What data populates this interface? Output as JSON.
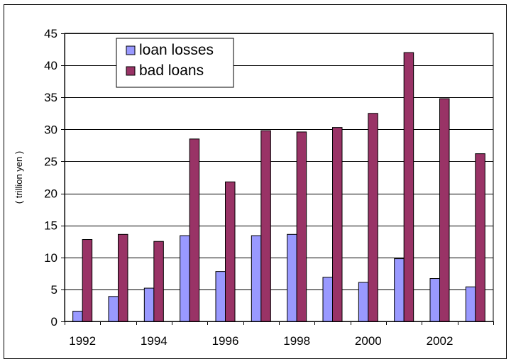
{
  "chart_data": {
    "type": "bar",
    "title": "",
    "xlabel": "",
    "ylabel": "( trillion yen )",
    "ylim": [
      0,
      45
    ],
    "y_ticks": [
      0,
      5,
      10,
      15,
      20,
      25,
      30,
      35,
      40,
      45
    ],
    "categories": [
      1992,
      1993,
      1994,
      1995,
      1996,
      1997,
      1998,
      1999,
      2000,
      2001,
      2002,
      2003
    ],
    "x_tick_labels": [
      "1992",
      "1994",
      "1996",
      "1998",
      "2000",
      "2002"
    ],
    "legend_position": "top-left",
    "grid": "horizontal",
    "series": [
      {
        "name": "loan losses",
        "color": "#9999ff",
        "values": [
          1.6,
          3.9,
          5.2,
          13.4,
          7.8,
          13.4,
          13.6,
          6.9,
          6.1,
          9.8,
          6.7,
          5.4
        ]
      },
      {
        "name": "bad loans",
        "color": "#993366",
        "values": [
          12.8,
          13.6,
          12.5,
          28.5,
          21.8,
          29.8,
          29.6,
          30.3,
          32.5,
          42.0,
          34.8,
          26.2
        ]
      }
    ]
  }
}
